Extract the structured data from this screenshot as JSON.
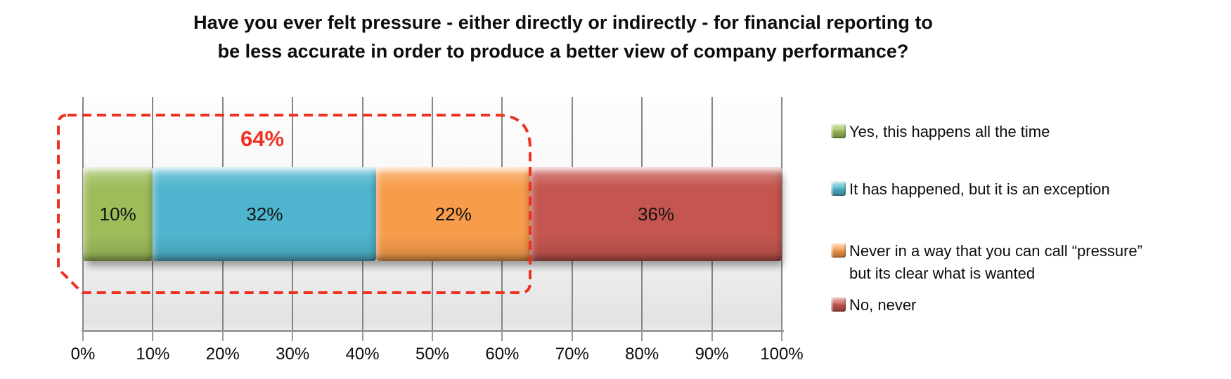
{
  "chart_data": {
    "type": "bar",
    "orientation": "horizontal-stacked",
    "title": "Have you ever felt pressure - either directly or indirectly - for financial reporting to be less accurate in order to produce a better view of company performance?",
    "title_lines": [
      "Have you ever felt pressure - either directly or indirectly - for financial reporting to",
      "be less accurate in order to produce a better view of company performance?"
    ],
    "segments": [
      {
        "label": "Yes, this happens all the time",
        "legend_lines": [
          "Yes, this happens all the time"
        ],
        "value": 10,
        "value_label": "10%",
        "color": "#9DBD5B"
      },
      {
        "label": "It has happened, but it is an exception",
        "legend_lines": [
          "It has happened, but it is an exception"
        ],
        "value": 32,
        "value_label": "32%",
        "color": "#4FB5CE"
      },
      {
        "label": "Never in a way that you can call “pressure” but its clear what is wanted",
        "legend_lines": [
          "Never in a way that you can call “pressure”",
          "but its clear what is wanted"
        ],
        "value": 22,
        "value_label": "22%",
        "color": "#F79C4B"
      },
      {
        "label": "No, never",
        "legend_lines": [
          "No, never"
        ],
        "value": 36,
        "value_label": "36%",
        "color": "#C5564F"
      }
    ],
    "x_ticks": [
      "0%",
      "10%",
      "20%",
      "30%",
      "40%",
      "50%",
      "60%",
      "70%",
      "80%",
      "90%",
      "100%"
    ],
    "xlim": [
      0,
      100
    ],
    "grid": true,
    "legend_position": "right",
    "annotation": {
      "label": "64%",
      "span_percent": 64,
      "color": "#EE3222",
      "style": "dashed-rounded-outline"
    }
  }
}
